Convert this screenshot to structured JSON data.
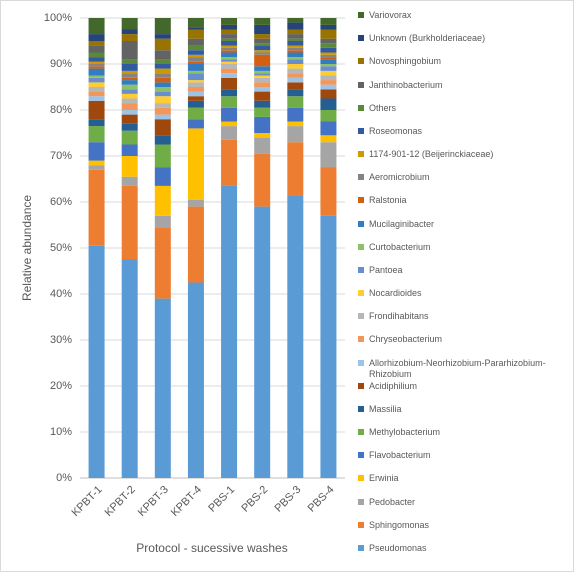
{
  "chart_data": {
    "type": "stacked-bar",
    "x_label": "Protocol - sucessive washes",
    "y_label": "Relative abundance",
    "categories": [
      "KPBT-1",
      "KPBT-2",
      "KPBT-3",
      "KPBT-4",
      "PBS-1",
      "PBS-2",
      "PBS-3",
      "PBS-4"
    ],
    "ylim": [
      0,
      100
    ],
    "yticks": [
      {
        "value": 0,
        "label": "0%"
      },
      {
        "value": 10,
        "label": "10%"
      },
      {
        "value": 20,
        "label": "20%"
      },
      {
        "value": 30,
        "label": "30%"
      },
      {
        "value": 40,
        "label": "40%"
      },
      {
        "value": 50,
        "label": "50%"
      },
      {
        "value": 60,
        "label": "60%"
      },
      {
        "value": 70,
        "label": "70%"
      },
      {
        "value": 80,
        "label": "80%"
      },
      {
        "value": 90,
        "label": "90%"
      },
      {
        "value": 100,
        "label": "100%"
      }
    ],
    "grid": true,
    "legend": "right",
    "series": [
      {
        "name": "Pseudomonas",
        "color": "#5b9bd5",
        "values": [
          50.5,
          47.5,
          39,
          42.5,
          63.5,
          59,
          61.5,
          57
        ]
      },
      {
        "name": "Sphingomonas",
        "color": "#ed7d31",
        "values": [
          16.5,
          16,
          15.5,
          16.5,
          10,
          11.5,
          11.5,
          10.5
        ]
      },
      {
        "name": "Pedobacter",
        "color": "#a5a5a5",
        "values": [
          1,
          2,
          2.5,
          1.5,
          3,
          3.5,
          3.5,
          5.5
        ]
      },
      {
        "name": "Erwinia",
        "color": "#ffc000",
        "values": [
          1,
          4.5,
          6.5,
          15.5,
          1,
          1,
          1,
          1.5
        ]
      },
      {
        "name": "Flavobacterium",
        "color": "#4472c4",
        "values": [
          4,
          2.5,
          4,
          2,
          3,
          3.5,
          3,
          3
        ]
      },
      {
        "name": "Methylobacterium",
        "color": "#70ad47",
        "values": [
          3.5,
          3,
          5,
          2.5,
          2.5,
          2,
          2.5,
          2.5
        ]
      },
      {
        "name": "Massilia",
        "color": "#255e91",
        "values": [
          1.5,
          1.5,
          2,
          1.5,
          1.5,
          1.5,
          1.5,
          2.5
        ]
      },
      {
        "name": "Acidiphilium",
        "color": "#9e480e",
        "values": [
          4,
          2,
          3.5,
          1,
          2.5,
          2,
          1.5,
          2
        ]
      },
      {
        "name": "Allorhizobium-Neorhizobium-Pararhizobium-Rhizobium",
        "color": "#9dc3e6",
        "values": [
          1,
          1,
          1,
          1,
          1,
          1,
          1,
          1
        ]
      },
      {
        "name": "Chryseobacterium",
        "color": "#f1975a",
        "values": [
          1,
          1.5,
          1.5,
          1,
          1,
          1,
          1,
          1
        ]
      },
      {
        "name": "Frondihabitans",
        "color": "#b7b7b7",
        "values": [
          1,
          1,
          1,
          1,
          1,
          1,
          1,
          1
        ]
      },
      {
        "name": "Nocardioides",
        "color": "#ffcd33",
        "values": [
          1,
          1,
          1.5,
          0.5,
          0.5,
          0.5,
          1,
          1
        ]
      },
      {
        "name": "Pantoea",
        "color": "#698ed0",
        "values": [
          1,
          1,
          1,
          1.5,
          0.5,
          0.5,
          1,
          1
        ]
      },
      {
        "name": "Curtobacterium",
        "color": "#8cc168",
        "values": [
          0.5,
          1,
          1,
          0.5,
          0.5,
          0.5,
          0.5,
          0.5
        ]
      },
      {
        "name": "Mucilaginibacter",
        "color": "#327dc2",
        "values": [
          1.5,
          1,
          1,
          1.5,
          1,
          1,
          1,
          1
        ]
      },
      {
        "name": "Ralstonia",
        "color": "#d26012",
        "values": [
          0.5,
          0.5,
          1,
          0.5,
          0.5,
          2.5,
          0.5,
          0.5
        ]
      },
      {
        "name": "Aeromicrobium",
        "color": "#848484",
        "values": [
          0.5,
          1,
          1,
          1,
          0.5,
          0.5,
          0.5,
          0.5
        ]
      },
      {
        "name": "1174-901-12 (Beijerinckiaceae)",
        "color": "#cc9a00",
        "values": [
          0.5,
          0.5,
          1,
          0.5,
          0.5,
          0.5,
          0.5,
          0.5
        ]
      },
      {
        "name": "Roseomonas",
        "color": "#335aa1",
        "values": [
          1,
          1.5,
          1,
          1,
          1,
          1,
          1,
          1
        ]
      },
      {
        "name": "Others",
        "color": "#5a8a39",
        "values": [
          1,
          1,
          1,
          1,
          0.5,
          0.5,
          0.5,
          1
        ]
      },
      {
        "name": "Janthinobacterium",
        "color": "#636363",
        "values": [
          1.5,
          4,
          2,
          1.5,
          1,
          1,
          1,
          1
        ]
      },
      {
        "name": "Novosphingobium",
        "color": "#997300",
        "values": [
          1,
          1.5,
          2.5,
          2,
          1,
          1,
          1,
          2
        ]
      },
      {
        "name": "Unknown (Burkholderiaceae)",
        "color": "#264478",
        "values": [
          1.5,
          1,
          1,
          0.5,
          1,
          2,
          1.5,
          1
        ]
      },
      {
        "name": "Variovorax",
        "color": "#43682b",
        "values": [
          3.5,
          2.5,
          3.5,
          2,
          1.5,
          1.5,
          1,
          1.5
        ]
      }
    ]
  }
}
